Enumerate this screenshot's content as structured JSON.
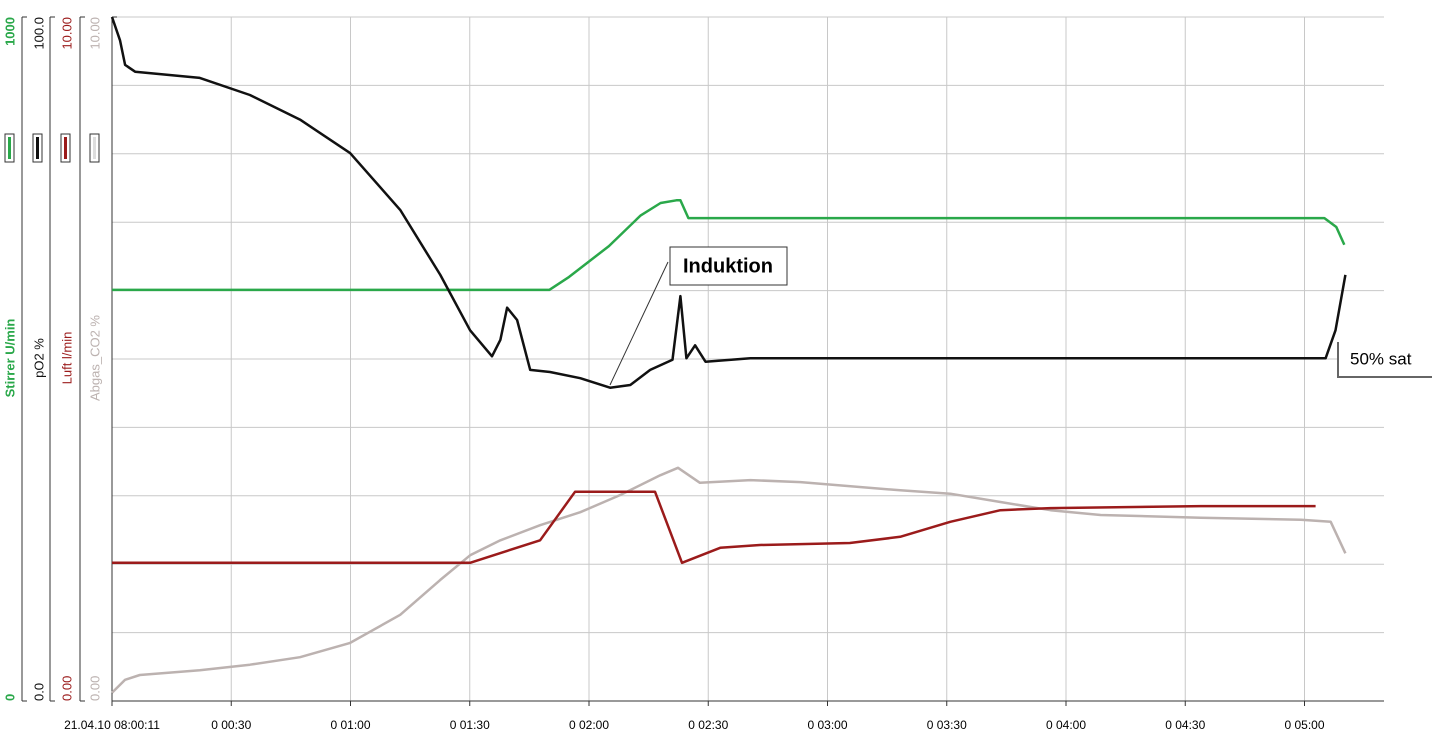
{
  "chart_data": {
    "type": "line",
    "xlim": [
      0,
      320
    ],
    "xticks": [
      {
        "value": 0,
        "label": "21.04.10 08:00:11"
      },
      {
        "value": 30,
        "label": "0 00:30"
      },
      {
        "value": 60,
        "label": "0 01:00"
      },
      {
        "value": 90,
        "label": "0 01:30"
      },
      {
        "value": 120,
        "label": "0 02:00"
      },
      {
        "value": 150,
        "label": "0 02:30"
      },
      {
        "value": 180,
        "label": "0 03:00"
      },
      {
        "value": 210,
        "label": "0 03:30"
      },
      {
        "value": 240,
        "label": "0 04:00"
      },
      {
        "value": 270,
        "label": "0 04:30"
      },
      {
        "value": 300,
        "label": "0 05:00"
      }
    ],
    "grid": true,
    "series": [
      {
        "name": "Stirrer U/min",
        "color": "#2aa84a",
        "ylim": [
          0,
          1000
        ],
        "yticks": [
          0,
          1000
        ],
        "x": [
          0,
          110,
          115,
          125,
          133,
          138,
          142,
          143,
          145,
          200,
          250,
          305,
          308,
          310
        ],
        "values": [
          601,
          601,
          620,
          665,
          710,
          728,
          732,
          732,
          706,
          706,
          706,
          706,
          693,
          667
        ]
      },
      {
        "name": "pO2 %",
        "color": "#111111",
        "ylim": [
          0,
          100
        ],
        "yticks": [
          {
            "value": 0,
            "label": "0.0"
          },
          {
            "value": 100,
            "label": "100.0"
          }
        ],
        "grid": [
          0,
          10,
          20,
          30,
          40,
          50,
          60,
          70,
          80,
          90,
          100
        ],
        "x": [
          0,
          2,
          3.3,
          5.8,
          22.1,
          34.7,
          47.3,
          59.9,
          72.5,
          82.6,
          90.1,
          95.6,
          97.7,
          99.4,
          101.9,
          105.2,
          110.2,
          117.8,
          125.3,
          130.4,
          135.4,
          141,
          143,
          144.5,
          146.7,
          149.3,
          160.6,
          223.5,
          305.3,
          307.8,
          310.3
        ],
        "values": [
          100,
          96.6,
          93,
          92,
          91.1,
          88.6,
          85,
          80.1,
          71.8,
          62.3,
          54.2,
          50.4,
          52.8,
          57.5,
          55.7,
          48.4,
          48.1,
          47.2,
          45.8,
          46.2,
          48.4,
          49.9,
          59.2,
          50.1,
          52,
          49.6,
          50.1,
          50.1,
          50.1,
          54.2,
          62.3
        ]
      },
      {
        "name": "Luft l/min",
        "color": "#9b1b1b",
        "ylim": [
          0,
          10
        ],
        "yticks": [
          {
            "value": 0,
            "label": "0.00"
          },
          {
            "value": 10,
            "label": "10.00"
          }
        ],
        "x": [
          0,
          90.1,
          107.7,
          116.5,
          136.6,
          143.4,
          153,
          163,
          185.6,
          198.3,
          210.9,
          223.5,
          236.1,
          273.9,
          302.8
        ],
        "values": [
          2.02,
          2.02,
          2.35,
          3.06,
          3.06,
          2.02,
          2.24,
          2.28,
          2.31,
          2.4,
          2.62,
          2.79,
          2.82,
          2.85,
          2.85
        ]
      },
      {
        "name": "Abgas_CO2 %",
        "color": "#bcb2b0",
        "ylim": [
          0,
          10
        ],
        "yticks": [
          {
            "value": 0,
            "label": "0.00"
          },
          {
            "value": 10,
            "label": "10.00"
          }
        ],
        "x": [
          0,
          3.3,
          7,
          22.1,
          34.7,
          47.3,
          59.9,
          72.5,
          82.6,
          90.1,
          97.7,
          107.7,
          117.8,
          127.8,
          137.9,
          142.4,
          147.9,
          160.6,
          173.2,
          198.3,
          210.9,
          223.5,
          236.1,
          248.7,
          273.9,
          299.1,
          306.6,
          310.3
        ],
        "values": [
          0.12,
          0.31,
          0.38,
          0.45,
          0.53,
          0.64,
          0.85,
          1.26,
          1.77,
          2.13,
          2.35,
          2.57,
          2.76,
          3.01,
          3.3,
          3.41,
          3.19,
          3.23,
          3.2,
          3.08,
          3.03,
          2.91,
          2.79,
          2.72,
          2.68,
          2.65,
          2.62,
          2.16
        ]
      }
    ],
    "annotations": [
      "Induktion",
      "50% sat"
    ]
  }
}
